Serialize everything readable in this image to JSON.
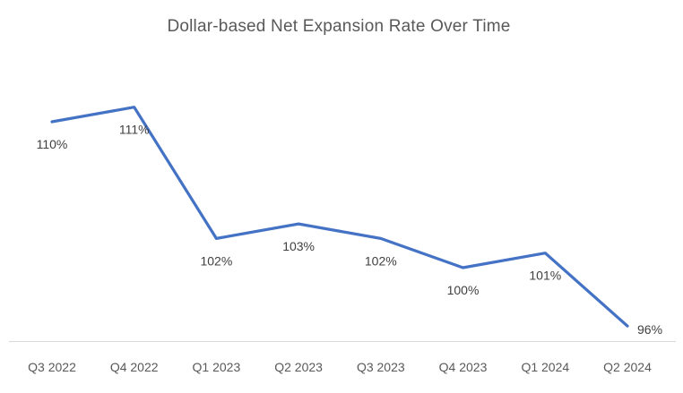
{
  "chart_data": {
    "type": "line",
    "title": "Dollar-based Net Expansion Rate Over Time",
    "categories": [
      "Q3 2022",
      "Q4 2022",
      "Q1 2023",
      "Q2 2023",
      "Q3 2023",
      "Q4 2023",
      "Q1 2024",
      "Q2 2024"
    ],
    "values": [
      110,
      111,
      102,
      103,
      102,
      100,
      101,
      96
    ],
    "data_labels": [
      "110%",
      "111%",
      "102%",
      "103%",
      "102%",
      "100%",
      "101%",
      "96%"
    ],
    "unit": "%",
    "xlabel": "",
    "ylabel": "",
    "grid": false,
    "legend": "none",
    "data_label_position": "below",
    "last_label_position": "right",
    "colors": {
      "line": "#4472C4",
      "data_label": "#404040",
      "axis_label": "#595959",
      "title": "#595959",
      "axis_line": "#D9D9D9",
      "background": "#FFFFFF"
    }
  }
}
